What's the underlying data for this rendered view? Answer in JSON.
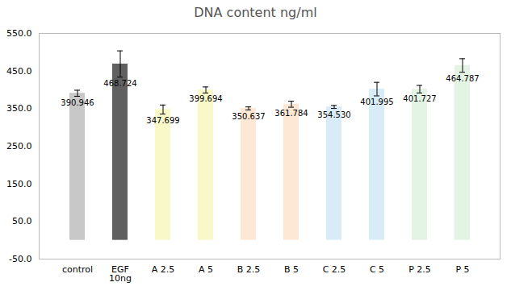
{
  "chart_data": {
    "type": "bar",
    "title": "DNA content ng/ml",
    "categories": [
      "control",
      "EGF\n10ng",
      "A 2.5",
      "A 5",
      "B 2.5",
      "B 5",
      "C 2.5",
      "C 5",
      "P 2.5",
      "P 5"
    ],
    "values": [
      390.946,
      468.724,
      347.699,
      399.694,
      350.637,
      361.784,
      354.53,
      401.995,
      401.727,
      464.787
    ],
    "value_labels": [
      "390.946",
      "468.724",
      "347.699",
      "399.694",
      "350.637",
      "361.784",
      "354.530",
      "401.995",
      "401.727",
      "464.787"
    ],
    "errors": [
      8,
      35,
      12,
      8,
      4,
      8,
      4,
      18,
      10,
      18
    ],
    "colors": [
      "#c8c8c8",
      "#606060",
      "#f8f8c8",
      "#f8f8c8",
      "#fce8d4",
      "#fce8d4",
      "#d8ecf8",
      "#d8ecf8",
      "#e4f4e4",
      "#e4f4e4"
    ],
    "ylim": [
      -50,
      550
    ],
    "yticks": [
      {
        "value": -50,
        "label": "-50.0"
      },
      {
        "value": 50,
        "label": "50.0"
      },
      {
        "value": 150,
        "label": "150.0"
      },
      {
        "value": 250,
        "label": "250.0"
      },
      {
        "value": 350,
        "label": "350.0"
      },
      {
        "value": 450,
        "label": "450.0"
      },
      {
        "value": 550,
        "label": "550.0"
      }
    ],
    "grid": false,
    "data_labels": true
  }
}
